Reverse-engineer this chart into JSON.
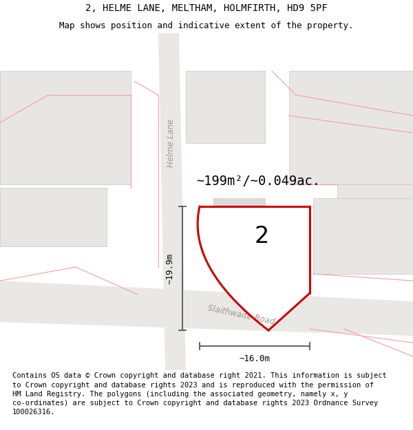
{
  "title": "2, HELME LANE, MELTHAM, HOLMFIRTH, HD9 5PF",
  "subtitle": "Map shows position and indicative extent of the property.",
  "footer": "Contains OS data © Crown copyright and database right 2021. This information is subject\nto Crown copyright and database rights 2023 and is reproduced with the permission of\nHM Land Registry. The polygons (including the associated geometry, namely x, y\nco-ordinates) are subject to Crown copyright and database rights 2023 Ordnance Survey\n100026316.",
  "area_label": "~199m²/~0.049ac.",
  "plot_number": "2",
  "dim_width": "~16.0m",
  "dim_height": "~19.9m",
  "road_label": "Slaithwaite Road",
  "lane_label": "Helme Lane",
  "map_bg": "#ffffff",
  "plot_edge": "#cc0000",
  "faint_red": "#f0a0a0",
  "building_fill": "#e8e6e3",
  "building_edge": "#c8c4c0",
  "road_fill": "#eae8e4",
  "dim_color": "#555555",
  "title_fontsize": 10,
  "subtitle_fontsize": 9,
  "footer_fontsize": 7.5
}
